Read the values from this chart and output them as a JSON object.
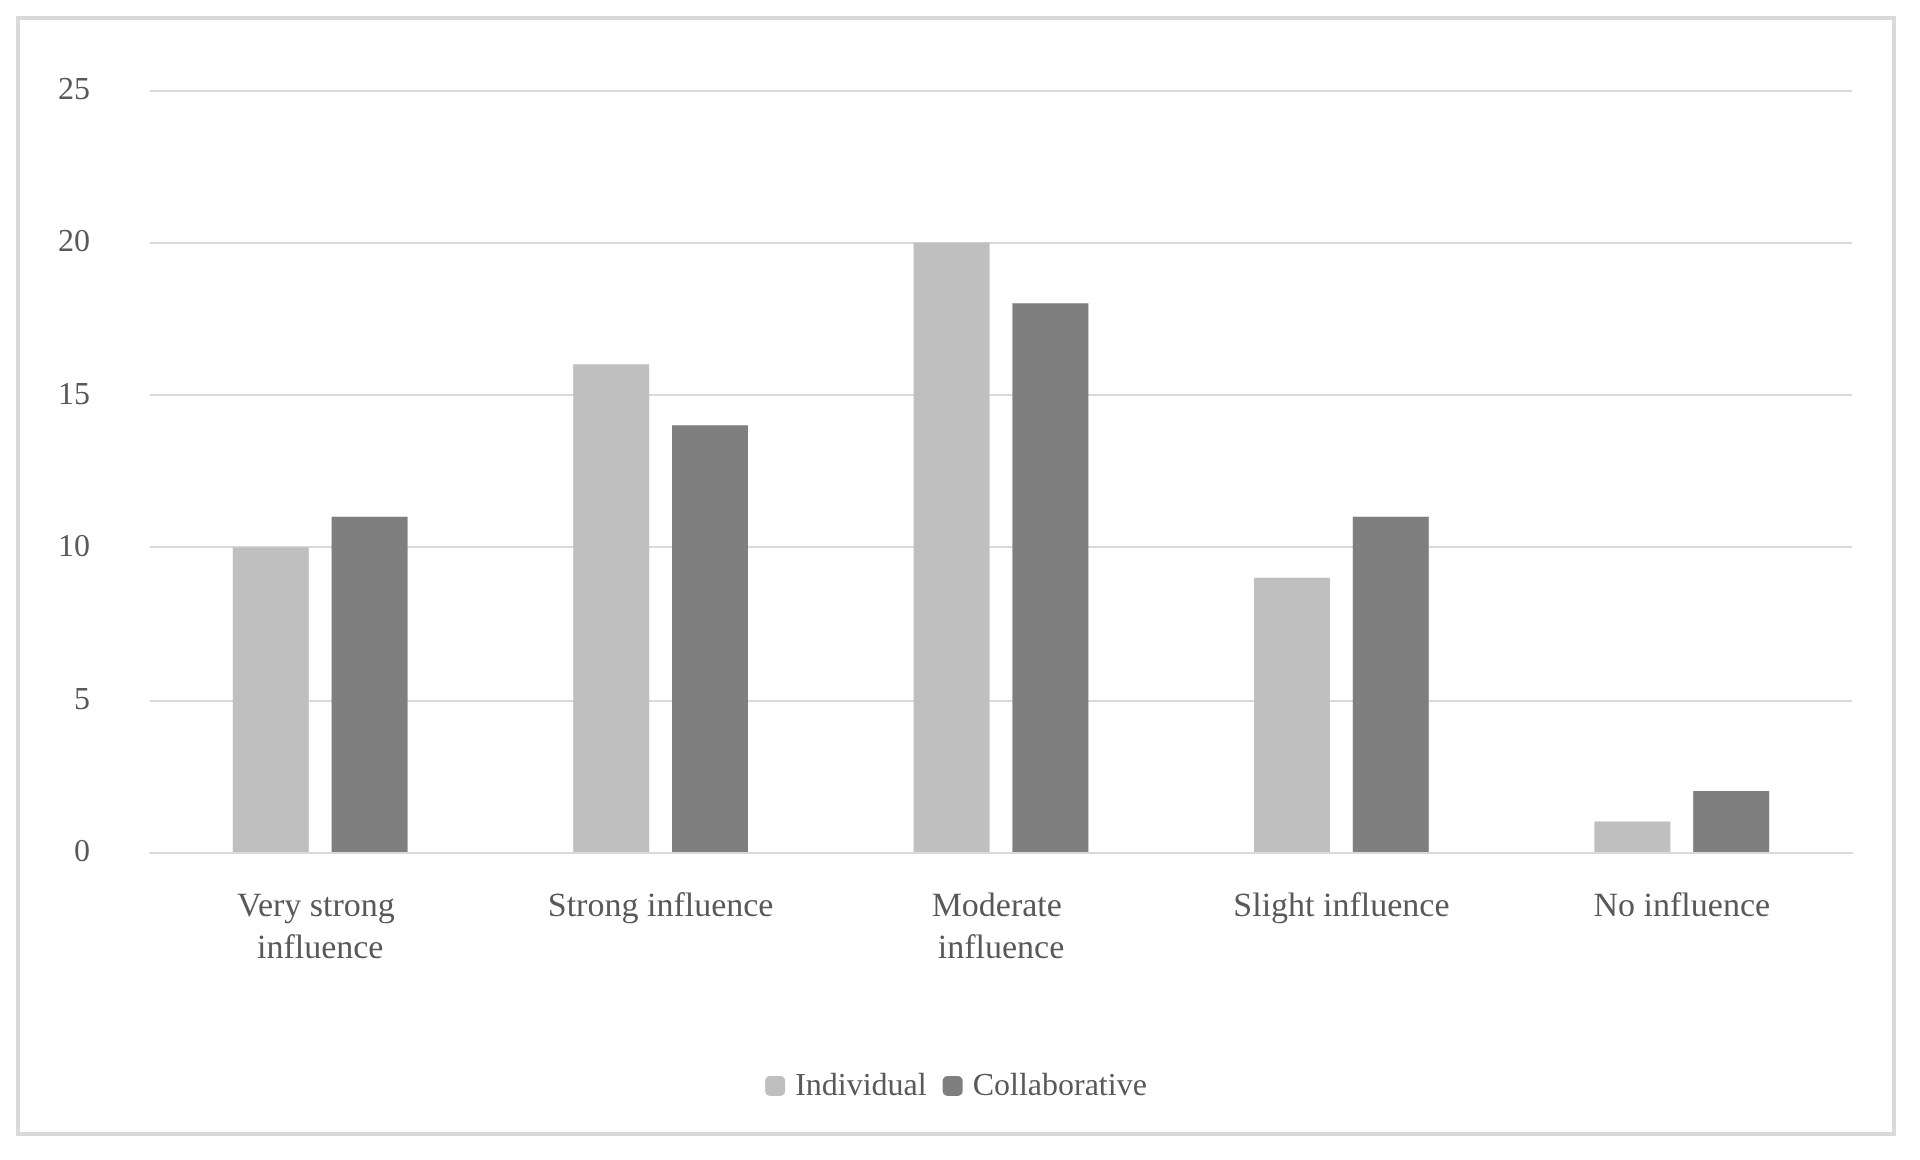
{
  "chart_data": {
    "type": "bar",
    "categories": [
      "Very strong influence",
      "Strong influence",
      "Moderate influence",
      "Slight influence",
      "No influence"
    ],
    "series": [
      {
        "name": "Individual",
        "color": "#bfbfbf",
        "values": [
          10,
          16,
          20,
          9,
          1
        ]
      },
      {
        "name": "Collaborative",
        "color": "#7f7f7f",
        "values": [
          11,
          14,
          18,
          11,
          2
        ]
      }
    ],
    "ylim": [
      0,
      25
    ],
    "yticks": [
      0,
      5,
      10,
      15,
      20,
      25
    ],
    "grid": "y",
    "legend": "bottom"
  }
}
